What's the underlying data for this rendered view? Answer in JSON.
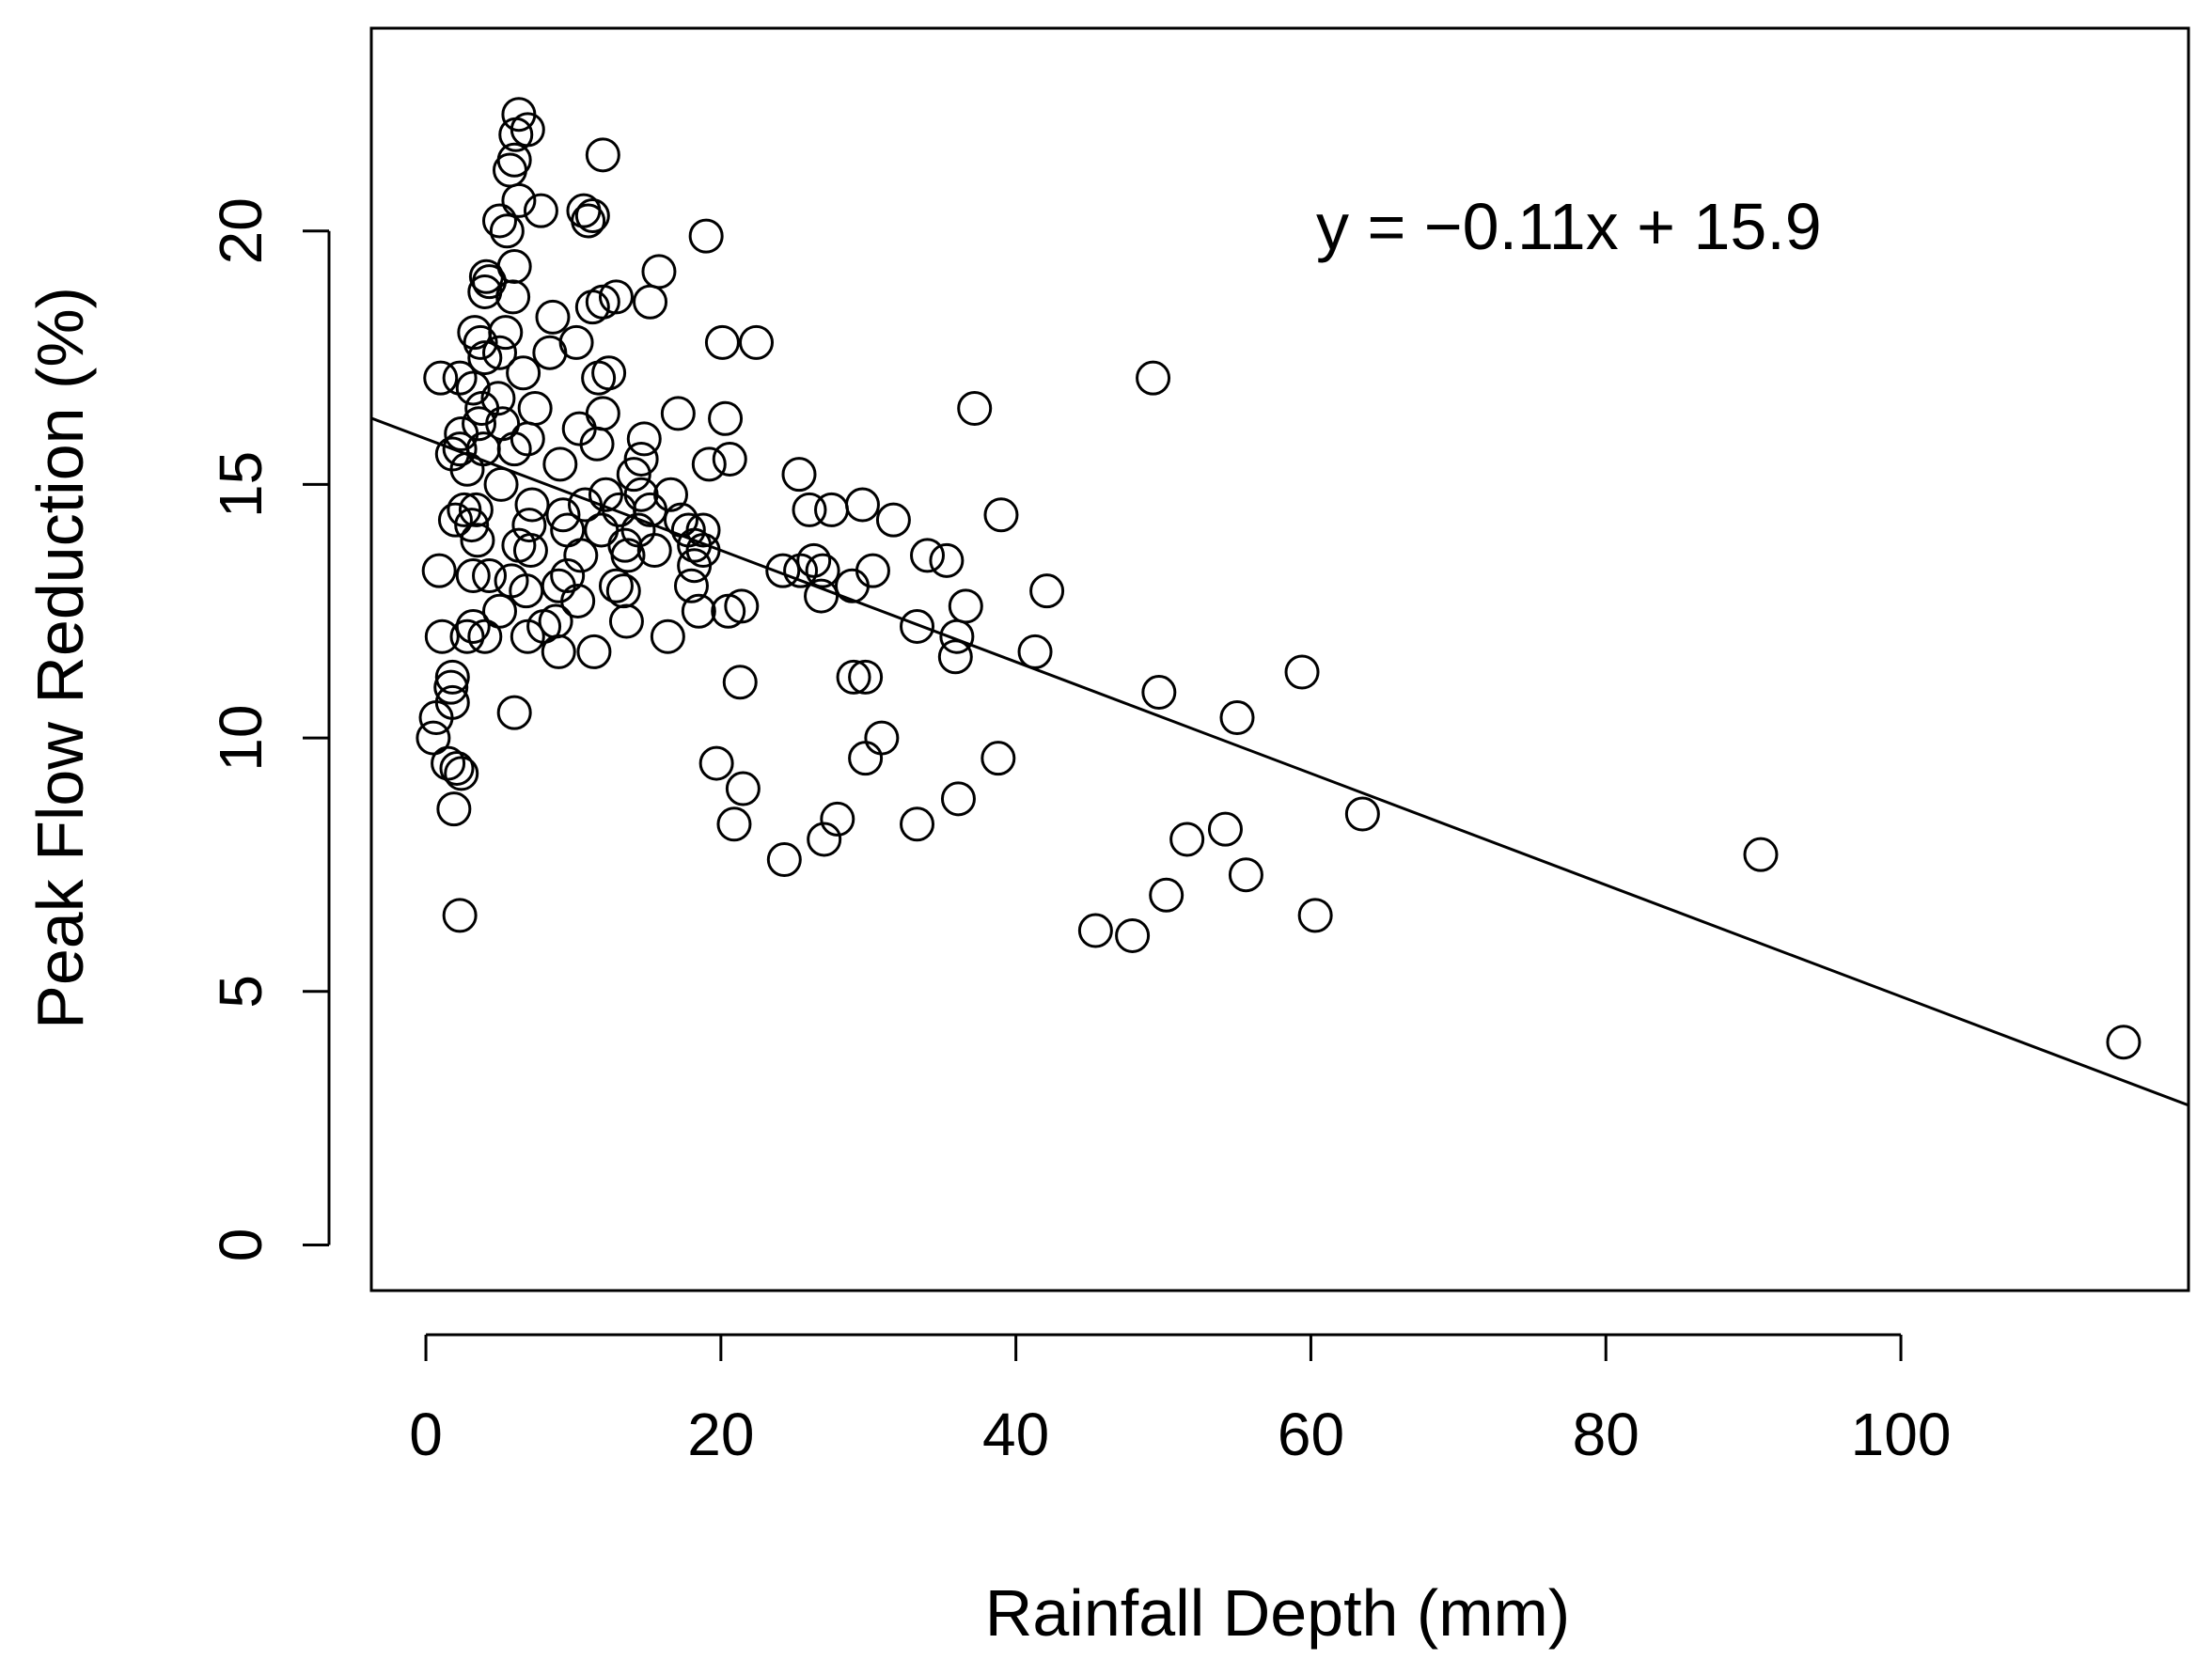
{
  "chart_data": {
    "type": "scatter",
    "title": "",
    "xlabel": "Rainfall Depth (mm)",
    "ylabel": "Peak Flow Reduction (%)",
    "xlim": [
      -3.7,
      119.5
    ],
    "ylim": [
      -0.9,
      24.0
    ],
    "xticks": [
      0,
      20,
      40,
      60,
      80,
      100
    ],
    "yticks": [
      0,
      5,
      10,
      15,
      20
    ],
    "grid": false,
    "legend": "none",
    "marker": "open-circle",
    "annotation": "y = −0.11x + 15.9",
    "trendline": {
      "slope": -0.11,
      "intercept": 15.9
    },
    "series": [
      {
        "points": [
          [
            6.3,
            22.3
          ],
          [
            6.9,
            22.0
          ],
          [
            6.1,
            21.9
          ],
          [
            6.0,
            21.4
          ],
          [
            5.7,
            21.2
          ],
          [
            12.0,
            21.5
          ],
          [
            6.3,
            20.6
          ],
          [
            7.8,
            20.4
          ],
          [
            10.7,
            20.4
          ],
          [
            11.3,
            20.3
          ],
          [
            11.0,
            20.2
          ],
          [
            5.0,
            20.2
          ],
          [
            5.5,
            20.0
          ],
          [
            19.0,
            19.9
          ],
          [
            6.0,
            19.3
          ],
          [
            15.8,
            19.2
          ],
          [
            4.1,
            19.1
          ],
          [
            4.3,
            19.0
          ],
          [
            4.0,
            18.8
          ],
          [
            5.9,
            18.7
          ],
          [
            12.9,
            18.7
          ],
          [
            12.0,
            18.6
          ],
          [
            11.3,
            18.5
          ],
          [
            15.2,
            18.6
          ],
          [
            8.6,
            18.3
          ],
          [
            3.3,
            18.0
          ],
          [
            5.4,
            18.0
          ],
          [
            3.7,
            17.8
          ],
          [
            20.1,
            17.8
          ],
          [
            22.4,
            17.8
          ],
          [
            10.2,
            17.8
          ],
          [
            8.4,
            17.6
          ],
          [
            5.0,
            17.6
          ],
          [
            4.0,
            17.5
          ],
          [
            6.6,
            17.2
          ],
          [
            2.3,
            17.1
          ],
          [
            1.0,
            17.1
          ],
          [
            12.4,
            17.2
          ],
          [
            11.7,
            17.1
          ],
          [
            49.3,
            17.1
          ],
          [
            3.2,
            16.9
          ],
          [
            4.9,
            16.7
          ],
          [
            3.8,
            16.5
          ],
          [
            7.4,
            16.5
          ],
          [
            37.2,
            16.5
          ],
          [
            17.1,
            16.4
          ],
          [
            20.3,
            16.3
          ],
          [
            12.0,
            16.4
          ],
          [
            3.6,
            16.2
          ],
          [
            5.2,
            16.2
          ],
          [
            2.4,
            16.0
          ],
          [
            10.4,
            16.1
          ],
          [
            6.9,
            15.9
          ],
          [
            14.8,
            15.9
          ],
          [
            2.3,
            15.7
          ],
          [
            3.9,
            15.7
          ],
          [
            6.0,
            15.7
          ],
          [
            11.6,
            15.8
          ],
          [
            1.8,
            15.6
          ],
          [
            14.6,
            15.5
          ],
          [
            20.6,
            15.5
          ],
          [
            19.2,
            15.4
          ],
          [
            9.1,
            15.4
          ],
          [
            2.8,
            15.3
          ],
          [
            14.1,
            15.2
          ],
          [
            25.3,
            15.2
          ],
          [
            5.1,
            15.0
          ],
          [
            12.2,
            14.8
          ],
          [
            14.6,
            14.8
          ],
          [
            16.6,
            14.8
          ],
          [
            7.2,
            14.6
          ],
          [
            2.6,
            14.5
          ],
          [
            3.4,
            14.5
          ],
          [
            10.8,
            14.6
          ],
          [
            26.0,
            14.5
          ],
          [
            27.5,
            14.5
          ],
          [
            29.6,
            14.6
          ],
          [
            39.0,
            14.4
          ],
          [
            2.0,
            14.3
          ],
          [
            9.3,
            14.4
          ],
          [
            13.1,
            14.5
          ],
          [
            15.2,
            14.5
          ],
          [
            17.3,
            14.3
          ],
          [
            31.7,
            14.3
          ],
          [
            3.1,
            14.2
          ],
          [
            7.0,
            14.2
          ],
          [
            9.6,
            14.1
          ],
          [
            11.9,
            14.1
          ],
          [
            14.4,
            14.1
          ],
          [
            17.8,
            14.1
          ],
          [
            18.8,
            14.1
          ],
          [
            3.5,
            13.9
          ],
          [
            6.3,
            13.8
          ],
          [
            13.5,
            13.8
          ],
          [
            18.2,
            13.8
          ],
          [
            7.1,
            13.7
          ],
          [
            10.5,
            13.6
          ],
          [
            15.5,
            13.7
          ],
          [
            18.8,
            13.7
          ],
          [
            13.7,
            13.6
          ],
          [
            34.0,
            13.6
          ],
          [
            35.3,
            13.5
          ],
          [
            18.2,
            13.4
          ],
          [
            24.2,
            13.3
          ],
          [
            25.4,
            13.3
          ],
          [
            26.3,
            13.5
          ],
          [
            26.9,
            13.3
          ],
          [
            30.3,
            13.3
          ],
          [
            4.3,
            13.2
          ],
          [
            9.6,
            13.2
          ],
          [
            0.9,
            13.3
          ],
          [
            3.2,
            13.2
          ],
          [
            5.8,
            13.1
          ],
          [
            18.0,
            13.0
          ],
          [
            9.0,
            13.0
          ],
          [
            12.9,
            13.0
          ],
          [
            6.8,
            12.9
          ],
          [
            13.4,
            12.9
          ],
          [
            26.8,
            12.8
          ],
          [
            28.9,
            13.0
          ],
          [
            42.1,
            12.9
          ],
          [
            10.3,
            12.7
          ],
          [
            5.0,
            12.5
          ],
          [
            18.5,
            12.5
          ],
          [
            20.5,
            12.5
          ],
          [
            21.4,
            12.6
          ],
          [
            36.6,
            12.6
          ],
          [
            8.8,
            12.3
          ],
          [
            13.6,
            12.3
          ],
          [
            3.2,
            12.2
          ],
          [
            8.0,
            12.2
          ],
          [
            1.1,
            12.0
          ],
          [
            2.8,
            12.0
          ],
          [
            4.0,
            12.0
          ],
          [
            6.9,
            12.0
          ],
          [
            16.4,
            12.0
          ],
          [
            33.3,
            12.2
          ],
          [
            36.0,
            12.0
          ],
          [
            9.0,
            11.7
          ],
          [
            11.4,
            11.7
          ],
          [
            35.9,
            11.6
          ],
          [
            41.3,
            11.7
          ],
          [
            59.4,
            11.3
          ],
          [
            29.0,
            11.2
          ],
          [
            29.8,
            11.2
          ],
          [
            1.8,
            11.2
          ],
          [
            1.7,
            11.0
          ],
          [
            21.3,
            11.1
          ],
          [
            49.7,
            10.9
          ],
          [
            1.8,
            10.7
          ],
          [
            0.7,
            10.4
          ],
          [
            6.0,
            10.5
          ],
          [
            55.0,
            10.4
          ],
          [
            0.5,
            10.0
          ],
          [
            30.9,
            10.0
          ],
          [
            1.5,
            9.5
          ],
          [
            2.1,
            9.4
          ],
          [
            2.4,
            9.3
          ],
          [
            19.7,
            9.5
          ],
          [
            29.8,
            9.6
          ],
          [
            38.8,
            9.6
          ],
          [
            21.5,
            9.0
          ],
          [
            1.9,
            8.6
          ],
          [
            36.1,
            8.8
          ],
          [
            63.5,
            8.5
          ],
          [
            27.9,
            8.4
          ],
          [
            20.9,
            8.3
          ],
          [
            33.3,
            8.3
          ],
          [
            54.2,
            8.2
          ],
          [
            27.0,
            8.0
          ],
          [
            51.6,
            8.0
          ],
          [
            24.3,
            7.6
          ],
          [
            90.5,
            7.7
          ],
          [
            55.6,
            7.3
          ],
          [
            50.2,
            6.9
          ],
          [
            60.3,
            6.5
          ],
          [
            2.3,
            6.5
          ],
          [
            45.4,
            6.2
          ],
          [
            47.9,
            6.1
          ],
          [
            115.1,
            4.0
          ]
        ]
      }
    ]
  }
}
